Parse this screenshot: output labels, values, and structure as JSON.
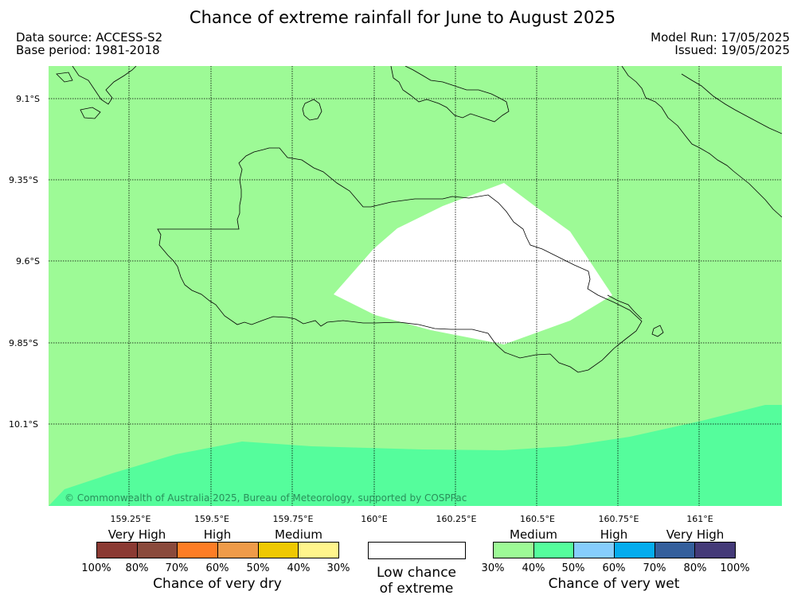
{
  "title": "Chance of extreme rainfall for June to August 2025",
  "data_source": "Data source: ACCESS-S2",
  "base_period": "Base period: 1981-2018",
  "model_run": "Model Run: 17/05/2025",
  "issued": "Issued: 19/05/2025",
  "map": {
    "lat_labels": [
      "9.1°S",
      "9.35°S",
      "9.6°S",
      "9.85°S",
      "10.1°S"
    ],
    "lon_labels": [
      "159.25°E",
      "159.5°E",
      "159.75°E",
      "160°E",
      "160.25°E",
      "160.5°E",
      "160.75°E",
      "161°E"
    ],
    "copyright": "© Commonwealth of Australia 2025, Bureau of Meteorology, supported by COSPPac",
    "colors": {
      "medium_wet": "#9dfa96",
      "high_wet": "#55fd9c",
      "low_chance": "#ffffff",
      "coastline": "#000000"
    }
  },
  "legend": {
    "dry": {
      "categories": [
        "Very High",
        "High",
        "Medium"
      ],
      "percents": [
        "100%",
        "80%",
        "70%",
        "60%",
        "50%",
        "40%",
        "30%"
      ],
      "colors": [
        "#8b3a33",
        "#8a4a3c",
        "#fd7d25",
        "#ef9b49",
        "#efc801",
        "#fff58c"
      ],
      "caption": "Chance of very dry"
    },
    "low": {
      "line1": "Low chance",
      "line2": "of extreme"
    },
    "wet": {
      "categories": [
        "Medium",
        "High",
        "Very High"
      ],
      "percents": [
        "30%",
        "40%",
        "50%",
        "60%",
        "70%",
        "80%",
        "100%"
      ],
      "colors": [
        "#9dfa96",
        "#55fd9c",
        "#86cdfc",
        "#05acee",
        "#345f9c",
        "#443a78"
      ],
      "caption": "Chance of very wet"
    }
  }
}
